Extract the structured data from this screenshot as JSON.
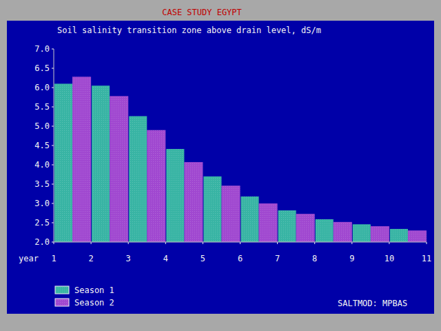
{
  "chart_data": {
    "type": "bar",
    "title": "CASE STUDY EGYPT",
    "subtitle": "Soil salinity transition zone above drain level, dS/m",
    "xlabel": "year",
    "annotation": "SALTMOD: MPBAS",
    "x": [
      1,
      2,
      3,
      4,
      5,
      6,
      7,
      8,
      9,
      10
    ],
    "xlim": [
      1,
      11
    ],
    "xticks": [
      1,
      2,
      3,
      4,
      5,
      6,
      7,
      8,
      9,
      10,
      11
    ],
    "ylim": [
      2,
      7
    ],
    "yticks": [
      {
        "value": 2,
        "label": "2.0"
      },
      2.5,
      {
        "value": 3,
        "label": "3.0"
      },
      3.5,
      {
        "value": 4,
        "label": "4.0"
      },
      4.5,
      {
        "value": 5,
        "label": "5.0"
      },
      5.5,
      {
        "value": 6,
        "label": "6.0"
      },
      6.5,
      {
        "value": 7,
        "label": "7.0"
      }
    ],
    "series": [
      {
        "name": "Season 1",
        "color": "#38b4a4",
        "values": [
          6.1,
          6.05,
          5.26,
          4.41,
          3.7,
          3.18,
          2.82,
          2.59,
          2.46,
          2.34
        ]
      },
      {
        "name": "Season 2",
        "color": "#a048d0",
        "values": [
          6.28,
          5.78,
          4.9,
          4.07,
          3.46,
          3.0,
          2.73,
          2.52,
          2.41,
          2.3
        ]
      }
    ],
    "legend": "bottom-left",
    "grid": false
  }
}
